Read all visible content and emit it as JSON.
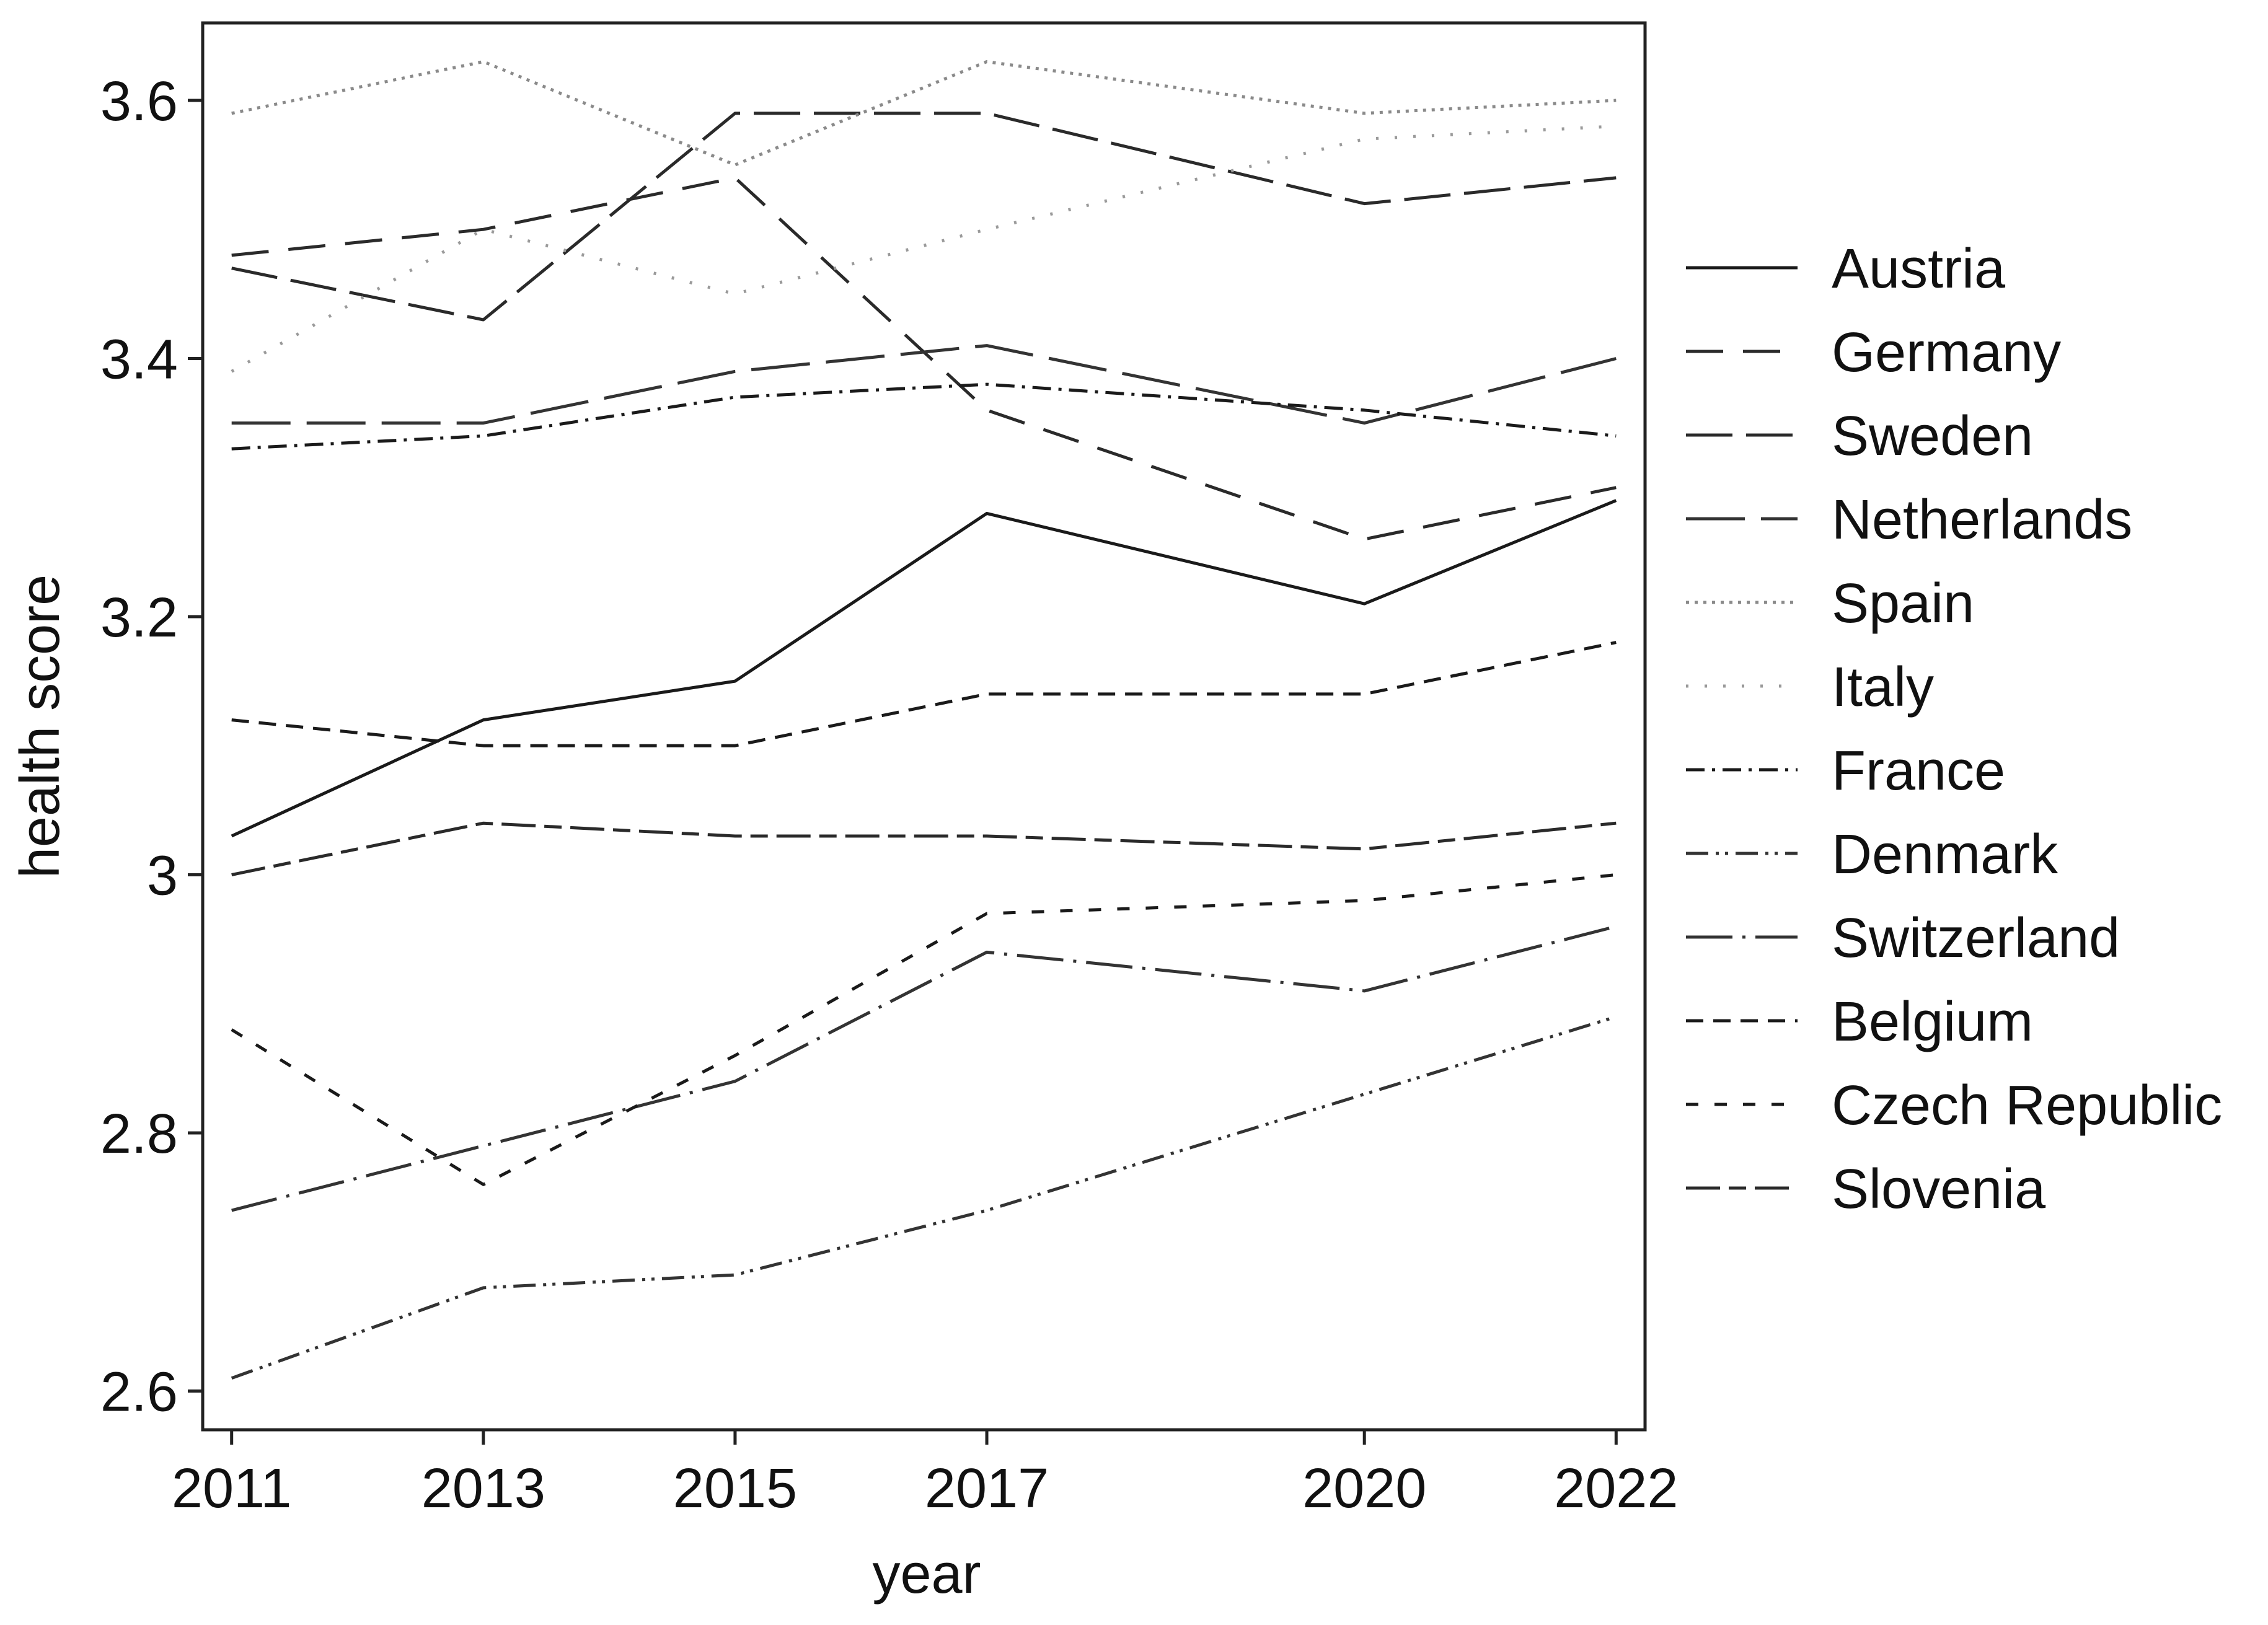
{
  "chart_data": {
    "type": "line",
    "xlabel": "year",
    "ylabel": "health score",
    "x": [
      2011,
      2013,
      2015,
      2017,
      2020,
      2022
    ],
    "xticks": [
      "2011",
      "2013",
      "2015",
      "2017",
      "2020",
      "2022"
    ],
    "yticks": [
      "2.6",
      "2.8",
      "3",
      "3.2",
      "3.4",
      "3.6"
    ],
    "xlim": [
      2010.77,
      2022.23
    ],
    "ylim": [
      2.57,
      3.66
    ],
    "grid": false,
    "legend_position": "right",
    "series": [
      {
        "name": "Austria",
        "values": [
          3.03,
          3.12,
          3.15,
          3.28,
          3.21,
          3.29
        ]
      },
      {
        "name": "Germany",
        "values": [
          3.48,
          3.5,
          3.54,
          3.36,
          3.26,
          3.3
        ]
      },
      {
        "name": "Sweden",
        "values": [
          3.47,
          3.43,
          3.59,
          3.59,
          3.52,
          3.54
        ]
      },
      {
        "name": "Netherlands",
        "values": [
          3.35,
          3.35,
          3.39,
          3.41,
          3.35,
          3.4
        ]
      },
      {
        "name": "Spain",
        "values": [
          3.59,
          3.63,
          3.55,
          3.63,
          3.59,
          3.6
        ]
      },
      {
        "name": "Italy",
        "values": [
          3.39,
          3.5,
          3.45,
          3.5,
          3.57,
          3.58
        ]
      },
      {
        "name": "France",
        "values": [
          3.33,
          3.34,
          3.37,
          3.38,
          3.36,
          3.34
        ]
      },
      {
        "name": "Denmark",
        "values": [
          2.61,
          2.68,
          2.69,
          2.74,
          2.83,
          2.89
        ]
      },
      {
        "name": "Switzerland",
        "values": [
          2.74,
          2.79,
          2.84,
          2.94,
          2.91,
          2.96
        ]
      },
      {
        "name": "Belgium",
        "values": [
          3.12,
          3.1,
          3.1,
          3.14,
          3.14,
          3.18
        ]
      },
      {
        "name": "Czech Republic",
        "values": [
          2.88,
          2.76,
          2.86,
          2.97,
          2.98,
          3.0
        ]
      },
      {
        "name": "Slovenia",
        "values": [
          3.0,
          3.04,
          3.03,
          3.03,
          3.02,
          3.04
        ]
      }
    ]
  }
}
